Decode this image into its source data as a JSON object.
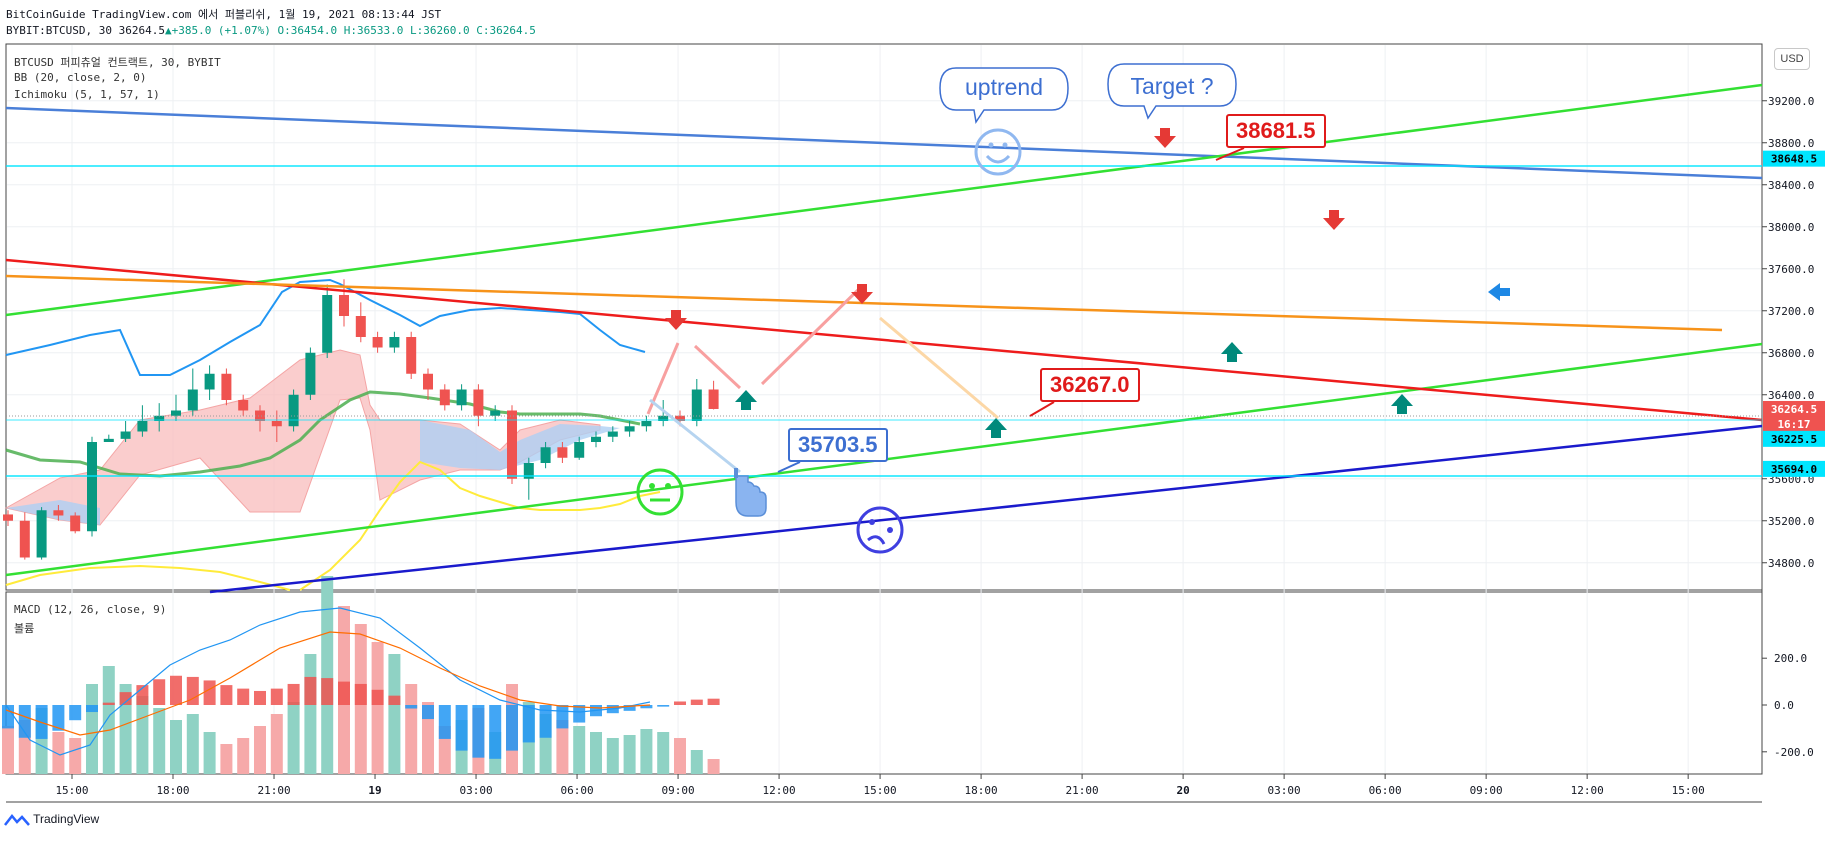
{
  "header": {
    "line1": "BitCoinGuide TradingView.com 에서 퍼블리쉬, 1월 19, 2021 08:13:44 JST",
    "symbol": "BYBIT:BTCUSD, 30",
    "last": "36264.5",
    "change": "+385.0 (+1.07%)",
    "ohlc": "O:36454.0 H:36533.0 L:36260.0 C:36264.5"
  },
  "indicators": {
    "main": "BTCUSD 퍼피츄얼 컨트랙트, 30, BYBIT",
    "bb": "BB (20, close, 2, 0)",
    "ichimoku": "Ichimoku (5, 1, 57, 1)",
    "macd": "MACD (12, 26, close, 9)",
    "volume": "볼륨"
  },
  "annotations": {
    "uptrend": "uptrend",
    "target": "Target ?",
    "label_high": "38681.5",
    "label_mid": "36267.0",
    "label_low": "35703.5"
  },
  "price_tags": [
    {
      "text": "38648.5",
      "bg": "#00e5ff",
      "fg": "#000000",
      "price": 38648.5
    },
    {
      "text": "36264.5",
      "bg": "#ef5350",
      "fg": "#ffffff",
      "price": 36264.5
    },
    {
      "text": "16:17",
      "bg": "#ef5350",
      "fg": "#ffffff",
      "price": 36120
    },
    {
      "text": "36225.5",
      "bg": "#00e5ff",
      "fg": "#000000",
      "price": 35980
    },
    {
      "text": "35694.0",
      "bg": "#00e5ff",
      "fg": "#000000",
      "price": 35694
    }
  ],
  "usd_label": "USD",
  "footer": {
    "logo_text": "TradingView"
  },
  "colors": {
    "up": "#089981",
    "down": "#ef5350",
    "cyan": "#00e5ff",
    "green_line": "#33e033",
    "red_line": "#ee1c1c",
    "orange_line": "#f7931a",
    "blue_line": "#4a7fd8",
    "navy_line": "#1a1acc"
  },
  "chart_data": {
    "type": "candlestick",
    "price_axis": {
      "ticks": [
        "39200.0",
        "38800.0",
        "38400.0",
        "38000.0",
        "37600.0",
        "37200.0",
        "36800.0",
        "36400.0",
        "35600.0",
        "35200.0",
        "34800.0"
      ],
      "ylim": [
        34550,
        39750
      ]
    },
    "time_axis": {
      "ticks": [
        "15:00",
        "18:00",
        "21:00",
        "19",
        "03:00",
        "06:00",
        "09:00",
        "12:00",
        "15:00",
        "18:00",
        "21:00",
        "20",
        "03:00",
        "06:00",
        "09:00",
        "12:00",
        "15:00"
      ]
    },
    "macd_axis": {
      "ticks": [
        "200.0",
        "0.0",
        "-200.0"
      ],
      "ylim": [
        -240,
        320
      ]
    },
    "candles": [
      [
        35260,
        35300,
        35150,
        35200
      ],
      [
        35200,
        35280,
        34830,
        34850
      ],
      [
        34850,
        35330,
        34830,
        35300
      ],
      [
        35300,
        35350,
        35200,
        35250
      ],
      [
        35250,
        35280,
        35080,
        35100
      ],
      [
        35100,
        36000,
        35050,
        35950
      ],
      [
        35950,
        36020,
        35950,
        35980
      ],
      [
        35980,
        36150,
        35950,
        36050
      ],
      [
        36050,
        36300,
        36000,
        36150
      ],
      [
        36150,
        36320,
        36050,
        36200
      ],
      [
        36200,
        36400,
        36150,
        36250
      ],
      [
        36250,
        36650,
        36200,
        36450
      ],
      [
        36450,
        36680,
        36350,
        36600
      ],
      [
        36600,
        36650,
        36300,
        36350
      ],
      [
        36350,
        36400,
        36200,
        36250
      ],
      [
        36250,
        36300,
        36050,
        36150
      ],
      [
        36150,
        36250,
        35950,
        36100
      ],
      [
        36100,
        36450,
        36050,
        36400
      ],
      [
        36400,
        36850,
        36350,
        36800
      ],
      [
        36800,
        37450,
        36750,
        37350
      ],
      [
        37350,
        37500,
        37050,
        37150
      ],
      [
        37150,
        37280,
        36900,
        36950
      ],
      [
        36950,
        37000,
        36800,
        36850
      ],
      [
        36850,
        37000,
        36800,
        36950
      ],
      [
        36950,
        37000,
        36550,
        36600
      ],
      [
        36600,
        36650,
        36350,
        36450
      ],
      [
        36450,
        36500,
        36250,
        36300
      ],
      [
        36300,
        36500,
        36250,
        36450
      ],
      [
        36450,
        36500,
        36100,
        36200
      ],
      [
        36200,
        36300,
        36150,
        36250
      ],
      [
        36250,
        36300,
        35550,
        35600
      ],
      [
        35600,
        35800,
        35400,
        35750
      ],
      [
        35750,
        35950,
        35700,
        35900
      ],
      [
        35900,
        35950,
        35750,
        35800
      ],
      [
        35800,
        36000,
        35780,
        35950
      ],
      [
        35950,
        36050,
        35900,
        36000
      ],
      [
        36000,
        36100,
        35950,
        36050
      ],
      [
        36050,
        36150,
        36000,
        36100
      ],
      [
        36100,
        36200,
        36050,
        36150
      ],
      [
        36150,
        36350,
        36100,
        36200
      ],
      [
        36200,
        36250,
        36100,
        36150
      ],
      [
        36150,
        36550,
        36100,
        36450
      ],
      [
        36450,
        36533,
        36260,
        36264.5
      ]
    ],
    "macd_histogram": [
      -100,
      -140,
      -145,
      -110,
      -65,
      -30,
      10,
      55,
      85,
      110,
      125,
      120,
      105,
      85,
      70,
      60,
      70,
      90,
      120,
      115,
      100,
      90,
      65,
      40,
      -15,
      -60,
      -145,
      -195,
      -225,
      -230,
      -195,
      -160,
      -140,
      -100,
      -75,
      -48,
      -35,
      -25,
      -14,
      -7,
      15,
      23,
      27
    ],
    "volume": [
      80,
      90,
      110,
      70,
      60,
      150,
      180,
      150,
      130,
      110,
      90,
      100,
      70,
      50,
      60,
      80,
      100,
      120,
      200,
      330,
      280,
      250,
      220,
      200,
      150,
      120,
      80,
      90,
      110,
      70,
      150,
      120,
      100,
      90,
      80,
      70,
      60,
      65,
      75,
      70,
      60,
      40,
      25
    ]
  }
}
